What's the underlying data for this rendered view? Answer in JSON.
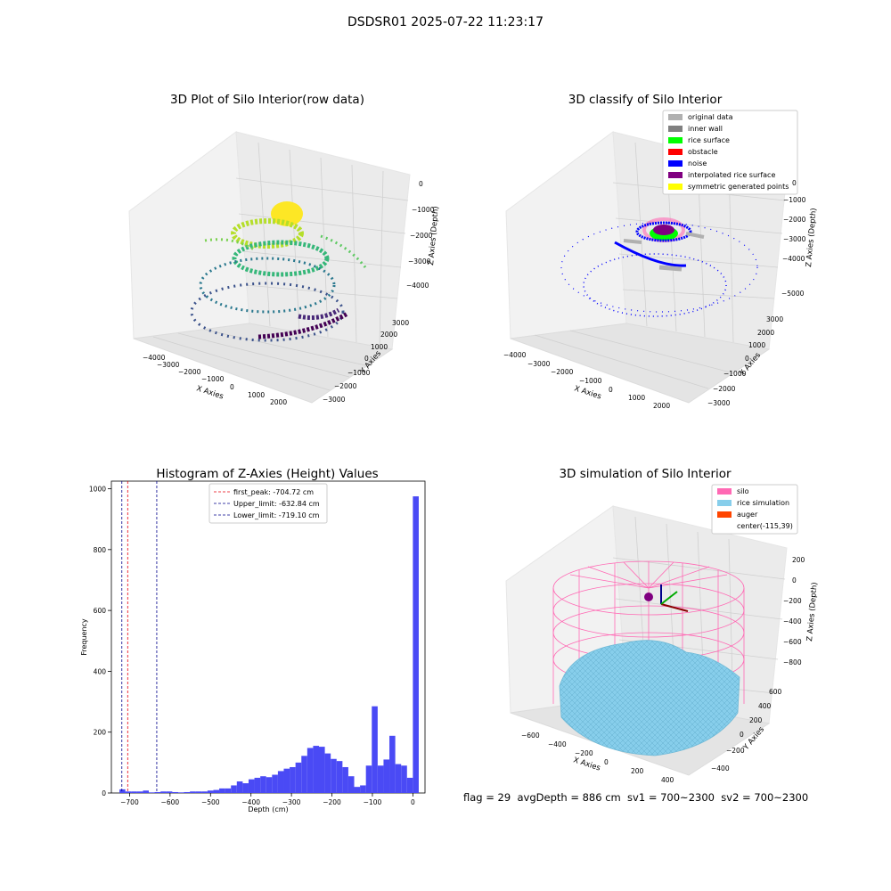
{
  "suptitle": "DSDSR01 2025-07-22 11:23:17",
  "status_line": "flag = 29  avgDepth = 886 cm  sv1 = 700~2300  sv2 = 700~2300",
  "chart_data": [
    {
      "type": "scatter",
      "subtype": "3d",
      "title": "3D Plot of Silo Interior(row data)",
      "xlabel": "X Axies",
      "ylabel": "Y Axies",
      "zlabel": "Z Axies (Depth)",
      "x_ticks": [
        "−4000",
        "−3000",
        "−2000",
        "−1000",
        "0",
        "1000",
        "2000"
      ],
      "y_ticks": [
        "−3000",
        "−2000",
        "−1000",
        "0",
        "1000",
        "2000",
        "3000"
      ],
      "z_ticks": [
        "0",
        "−1000",
        "−2000",
        "−3000",
        "−4000"
      ],
      "colormap": "viridis",
      "grid": true
    },
    {
      "type": "scatter",
      "subtype": "3d",
      "title": "3D classify of Silo Interior",
      "xlabel": "X Axies",
      "ylabel": "Y Axies",
      "zlabel": "Z Axies (Depth)",
      "x_ticks": [
        "−4000",
        "−3000",
        "−2000",
        "−1000",
        "0",
        "1000",
        "2000"
      ],
      "y_ticks": [
        "−3000",
        "−2000",
        "−1000",
        "0",
        "1000",
        "2000",
        "3000"
      ],
      "z_ticks": [
        "0",
        "−1000",
        "−2000",
        "−3000",
        "−4000",
        "−5000"
      ],
      "legend_position": "top-right",
      "legend": [
        {
          "label": "original data",
          "color": "#b0b0b0"
        },
        {
          "label": "inner wall",
          "color": "#808080"
        },
        {
          "label": "rice surface",
          "color": "#00ff00"
        },
        {
          "label": "obstacle",
          "color": "#ff0000"
        },
        {
          "label": "noise",
          "color": "#0000ff"
        },
        {
          "label": "interpolated rice surface",
          "color": "#800080"
        },
        {
          "label": "symmetric generated points",
          "color": "#ffff00"
        }
      ],
      "grid": true
    },
    {
      "type": "bar",
      "subtype": "histogram",
      "title": "Histogram of Z-Axies (Height) Values",
      "xlabel": "Depth (cm)",
      "ylabel": "Frequency",
      "xlim": [
        -745,
        30
      ],
      "ylim": [
        0,
        1025
      ],
      "x_ticks": [
        "−700",
        "−600",
        "−500",
        "−400",
        "−300",
        "−200",
        "−100",
        "0"
      ],
      "x_tick_values": [
        -700,
        -600,
        -500,
        -400,
        -300,
        -200,
        -100,
        0
      ],
      "y_ticks": [
        "0",
        "200",
        "400",
        "600",
        "800",
        "1000"
      ],
      "y_tick_values": [
        0,
        200,
        400,
        600,
        800,
        1000
      ],
      "bin_start": -725,
      "bin_width": 14.5,
      "values": [
        12,
        5,
        5,
        5,
        8,
        2,
        3,
        5,
        5,
        3,
        2,
        3,
        5,
        5,
        5,
        8,
        10,
        15,
        15,
        25,
        38,
        32,
        45,
        50,
        55,
        52,
        60,
        72,
        80,
        85,
        100,
        122,
        148,
        155,
        152,
        130,
        112,
        105,
        85,
        55,
        20,
        25,
        90,
        285,
        90,
        110,
        188,
        95,
        90,
        50,
        975
      ],
      "bar_color": "#4a4af5",
      "lines": [
        {
          "label": "first_peak: -704.72 cm",
          "x": -704.72,
          "color": "#e8000b",
          "style": "dashed"
        },
        {
          "label": "Upper_limit: -632.84 cm",
          "x": -632.84,
          "color": "#00008b",
          "style": "dashed"
        },
        {
          "label": "Lower_limit: -719.10 cm",
          "x": -719.1,
          "color": "#00008b",
          "style": "dashed"
        }
      ],
      "legend_position": "top-center",
      "grid": false
    },
    {
      "type": "surface",
      "subtype": "3d",
      "title": "3D simulation of Silo Interior",
      "xlabel": "X Axies",
      "ylabel": "Y Axies",
      "zlabel": "Z Axies (Depth)",
      "x_ticks": [
        "−600",
        "−400",
        "−200",
        "0",
        "200",
        "400"
      ],
      "y_ticks": [
        "−400",
        "−200",
        "0",
        "200",
        "400",
        "600"
      ],
      "z_ticks": [
        "200",
        "0",
        "−200",
        "−400",
        "−600",
        "−800"
      ],
      "legend_position": "top-right",
      "legend": [
        {
          "label": "silo",
          "color": "#ff69b4"
        },
        {
          "label": "rice simulation",
          "color": "#87ceeb"
        },
        {
          "label": "auger",
          "color": "#ff4500"
        },
        {
          "label": "center(-115,39)",
          "color": ""
        }
      ],
      "grid": true
    }
  ]
}
